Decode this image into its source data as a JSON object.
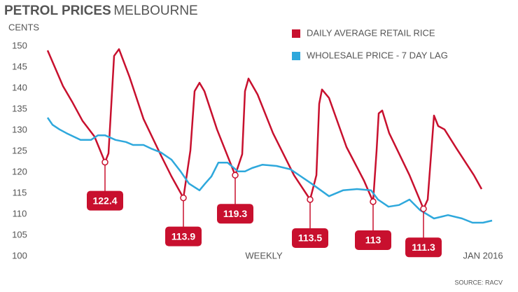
{
  "chart_data": {
    "type": "line",
    "title": "PETROL PRICES",
    "title_suffix": "MELBOURNE",
    "y_label": "CENTS",
    "x_label": "WEEKLY",
    "source": "SOURCE: RACV",
    "xlim": [
      0,
      130
    ],
    "xticks": [
      {
        "value": 124.4,
        "label": "JAN 2016"
      }
    ],
    "ylim": [
      100,
      150
    ],
    "yticks": [
      100,
      105,
      110,
      115,
      120,
      125,
      130,
      135,
      140,
      145,
      150
    ],
    "grid": false,
    "legend": "top-right",
    "series": [
      {
        "name": "DAILY AVERAGE RETAIL RICE",
        "color": "#c8102e",
        "x": [
          0,
          4.4,
          7,
          10,
          13.4,
          16.4,
          17.4,
          19,
          20.4,
          23.4,
          27.4,
          32.4,
          35.4,
          38.8,
          40.8,
          42,
          43.4,
          44.8,
          48.4,
          53.6,
          55.6,
          56.4,
          57.4,
          60,
          64.4,
          70.4,
          75,
          76.8,
          77.6,
          78.4,
          80.4,
          85.4,
          90.4,
          93,
          94,
          94.6,
          95.6,
          97.6,
          103.4,
          107.4,
          108.6,
          110.4,
          111.6,
          113.4,
          116.8,
          121.8,
          124
        ],
        "values": [
          149,
          140.5,
          136.8,
          132.2,
          128.5,
          122.4,
          124.5,
          147.7,
          149.3,
          142.7,
          132.7,
          124,
          119,
          113.9,
          125.2,
          139.3,
          141.3,
          139.3,
          130.2,
          119.3,
          124.3,
          139.3,
          142.3,
          138.5,
          129.3,
          119.3,
          113.5,
          119.3,
          136.3,
          139.7,
          137.7,
          126,
          118,
          113,
          125.2,
          134,
          134.7,
          129.3,
          119.3,
          111.3,
          113.5,
          133.5,
          131,
          130.2,
          125.7,
          119.3,
          116
        ]
      },
      {
        "name": "WHOLESALE PRICE - 7 DAY LAG",
        "color": "#2ea8dc",
        "x": [
          0,
          1.4,
          3.4,
          5.4,
          9.4,
          12.4,
          14.4,
          16.4,
          19.4,
          22.4,
          24.4,
          27.4,
          29.4,
          32.4,
          35.4,
          38,
          40.4,
          43.4,
          45,
          46.8,
          48.8,
          51.4,
          54.4,
          56.4,
          58.4,
          61.4,
          65.4,
          69.4,
          72.4,
          75.4,
          80.4,
          84.4,
          88.4,
          92.4,
          94.4,
          97.4,
          100.4,
          103.4,
          106.4,
          110.4,
          114.4,
          118.4,
          121.4,
          124.4,
          127
        ],
        "values": [
          133,
          131.3,
          130.2,
          129.3,
          127.7,
          127.7,
          128.8,
          128.8,
          127.7,
          127.2,
          126.5,
          126.5,
          125.7,
          124.7,
          123,
          120.2,
          117.3,
          115.7,
          117.3,
          119,
          122.3,
          122.3,
          120.2,
          120.2,
          121,
          121.8,
          121.5,
          120.7,
          119,
          117.3,
          114.3,
          115.7,
          116,
          115.7,
          113.5,
          111.8,
          112.2,
          113.5,
          111,
          109,
          109.8,
          109,
          108,
          108,
          108.5
        ]
      }
    ],
    "annotations": [
      {
        "x": 16.4,
        "value": 122.4
      },
      {
        "x": 38.8,
        "value": 113.9
      },
      {
        "x": 53.6,
        "value": 119.3
      },
      {
        "x": 75,
        "value": 113.5
      },
      {
        "x": 93,
        "value": 113
      },
      {
        "x": 107.4,
        "value": 111.3
      }
    ]
  }
}
